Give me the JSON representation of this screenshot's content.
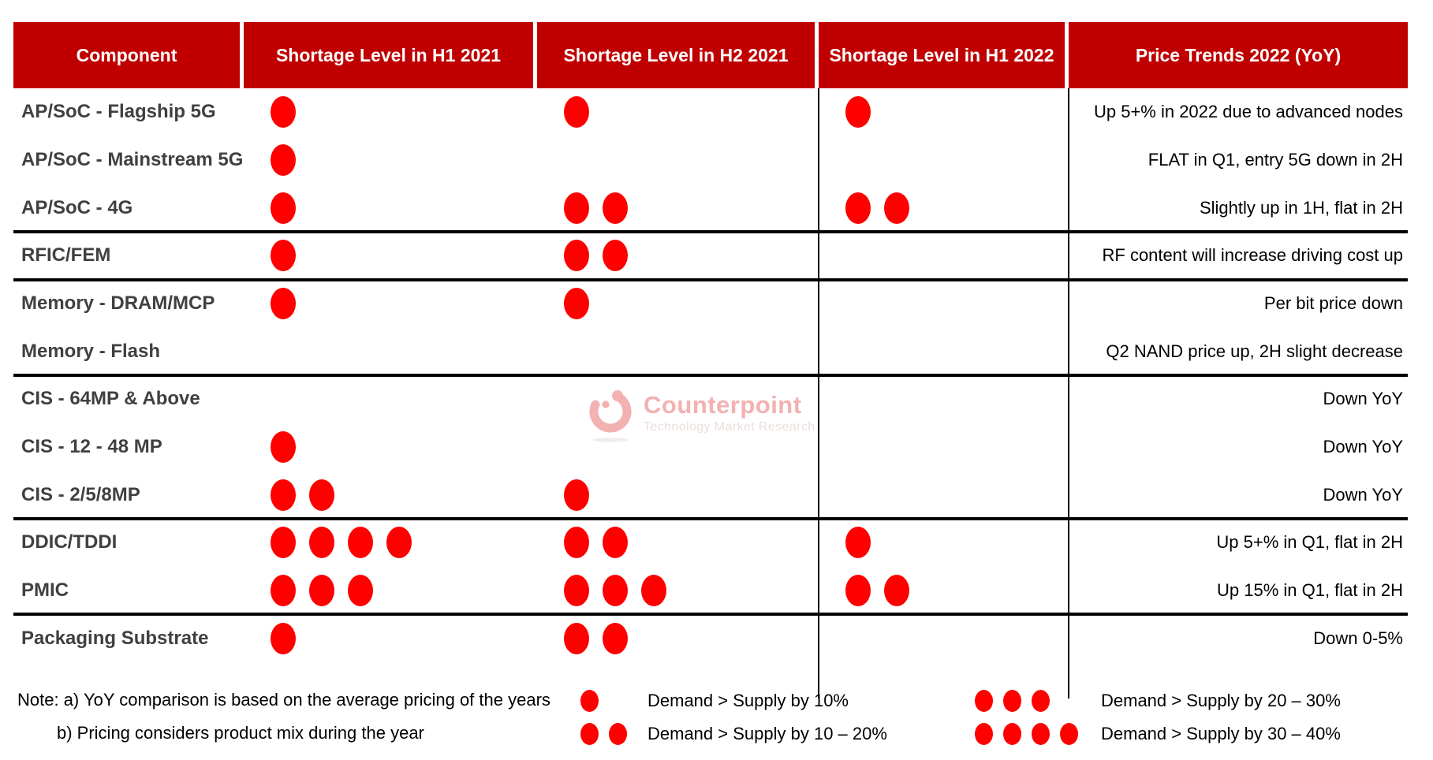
{
  "chart_data": {
    "type": "table",
    "columns": [
      "Component",
      "Shortage Level in H1 2021",
      "Shortage Level in H2 2021",
      "Shortage Level in H1 2022",
      "Price Trends 2022 (YoY)"
    ],
    "dot_unit_note": "each dot = shortage severity step per legend",
    "rows": [
      {
        "component": "AP/SoC - Flagship 5G",
        "h1_2021": 1,
        "h2_2021": 1,
        "h1_2022": 1,
        "price_trend": "Up 5+% in 2022 due to advanced nodes",
        "group_end": false
      },
      {
        "component": "AP/SoC - Mainstream 5G",
        "h1_2021": 1,
        "h2_2021": 0,
        "h1_2022": 0,
        "price_trend": "FLAT in Q1, entry 5G down in 2H",
        "group_end": false
      },
      {
        "component": "AP/SoC - 4G",
        "h1_2021": 1,
        "h2_2021": 2,
        "h1_2022": 2,
        "price_trend": "Slightly up in 1H, flat in 2H",
        "group_end": true
      },
      {
        "component": "RFIC/FEM",
        "h1_2021": 1,
        "h2_2021": 2,
        "h1_2022": 0,
        "price_trend": "RF content will increase driving cost up",
        "group_end": true
      },
      {
        "component": "Memory - DRAM/MCP",
        "h1_2021": 1,
        "h2_2021": 1,
        "h1_2022": 0,
        "price_trend": "Per bit price down",
        "group_end": false
      },
      {
        "component": "Memory - Flash",
        "h1_2021": 0,
        "h2_2021": 0,
        "h1_2022": 0,
        "price_trend": "Q2 NAND price up, 2H slight decrease",
        "group_end": true
      },
      {
        "component": "CIS - 64MP & Above",
        "h1_2021": 0,
        "h2_2021": 0,
        "h1_2022": 0,
        "price_trend": "Down YoY",
        "group_end": false
      },
      {
        "component": "CIS - 12 - 48 MP",
        "h1_2021": 1,
        "h2_2021": 0,
        "h1_2022": 0,
        "price_trend": "Down YoY",
        "group_end": false
      },
      {
        "component": "CIS - 2/5/8MP",
        "h1_2021": 2,
        "h2_2021": 1,
        "h1_2022": 0,
        "price_trend": "Down YoY",
        "group_end": true
      },
      {
        "component": "DDIC/TDDI",
        "h1_2021": 4,
        "h2_2021": 2,
        "h1_2022": 1,
        "price_trend": "Up 5+% in Q1, flat in 2H",
        "group_end": false
      },
      {
        "component": "PMIC",
        "h1_2021": 3,
        "h2_2021": 3,
        "h1_2022": 2,
        "price_trend": "Up 15% in Q1, flat in 2H",
        "group_end": true
      },
      {
        "component": "Packaging Substrate",
        "h1_2021": 1,
        "h2_2021": 2,
        "h1_2022": 0,
        "price_trend": "Down 0-5%",
        "group_end": false
      }
    ]
  },
  "legend": [
    {
      "dots": 1,
      "label": "Demand > Supply by 10%"
    },
    {
      "dots": 2,
      "label": "Demand > Supply by 10 – 20%"
    },
    {
      "dots": 3,
      "label": "Demand > Supply by 20 – 30%"
    },
    {
      "dots": 4,
      "label": "Demand > Supply by 30 – 40%"
    }
  ],
  "notes": {
    "line_a": "Note: a) YoY comparison is based on the average pricing of the years",
    "line_b": "b) Pricing considers product mix during the year"
  },
  "watermark": {
    "brand": "Counterpoint",
    "subtitle": "Technology Market Research"
  },
  "colors": {
    "header_bg": "#C00000",
    "dot_red": "#FF0000",
    "label_text": "#404040",
    "body_text": "#000000",
    "watermark_pink": "#F3B1B1",
    "watermark_gray": "#E8DFDC"
  }
}
